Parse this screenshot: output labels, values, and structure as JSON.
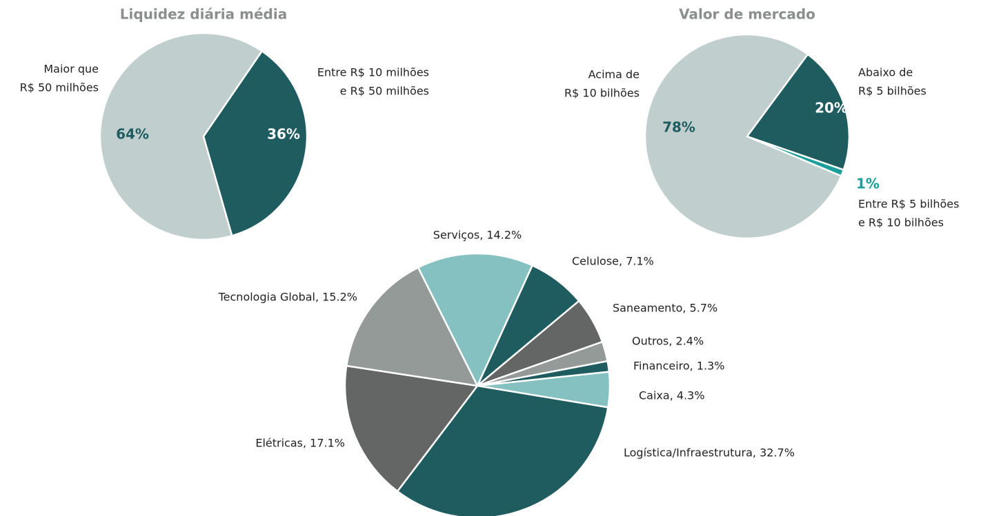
{
  "chart_data": [
    {
      "type": "pie",
      "title": "Liquidez diária média",
      "categories": [
        [
          "Maior que",
          "R$ 50 milhões"
        ],
        [
          "Entre R$ 10 milhões",
          "e R$ 50 milhões"
        ]
      ],
      "values": [
        64,
        36
      ],
      "value_labels": [
        "64%",
        "36%"
      ],
      "colors": [
        "#c0cfcd",
        "#1f5c60"
      ]
    },
    {
      "type": "pie",
      "title": "Valor de mercado",
      "categories": [
        [
          "Acima de",
          "R$ 10 bilhões"
        ],
        [
          "Abaixo de",
          "R$ 5 bilhões"
        ],
        [
          "Entre R$ 5 bilhões",
          "e R$ 10 bilhões"
        ]
      ],
      "values": [
        78,
        20,
        1
      ],
      "value_labels": [
        "78%",
        "20%",
        "1%"
      ],
      "colors": [
        "#c0cfcd",
        "#1f5c60",
        "#1a9e9a"
      ]
    },
    {
      "type": "pie",
      "labels": [
        "Serviços, 14.2%",
        "Celulose, 7.1%",
        "Saneamento, 5.7%",
        "Outros, 2.4%",
        "Financeiro, 1.3%",
        "Caixa, 4.3%",
        "Logística/Infraestrutura, 32.7%",
        "Elétricas, 17.1%",
        "Tecnologia Global, 15.2%"
      ],
      "values": [
        14.2,
        7.1,
        5.7,
        2.4,
        1.3,
        4.3,
        32.7,
        17.1,
        15.2
      ],
      "colors": [
        "#86c1c2",
        "#1f5c60",
        "#646665",
        "#939a98",
        "#1f5c60",
        "#86c1c2",
        "#1f5c60",
        "#646665",
        "#939a98"
      ]
    }
  ]
}
